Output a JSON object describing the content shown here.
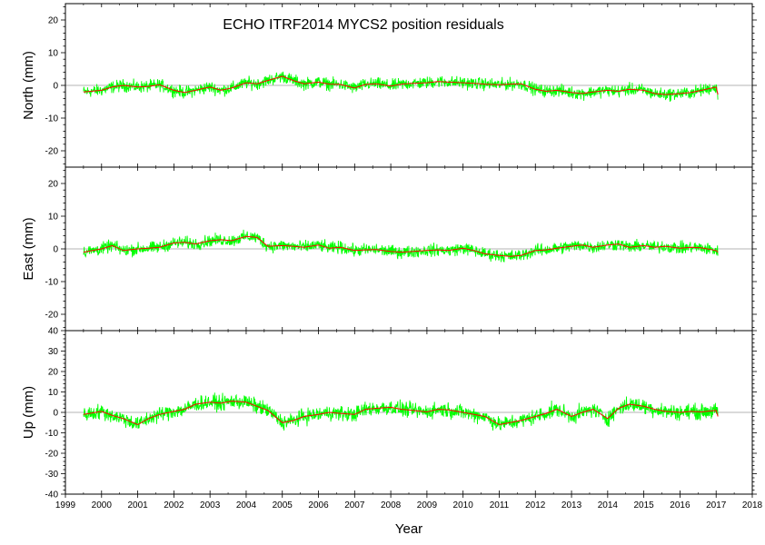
{
  "chart_data": {
    "type": "line",
    "title": "ECHO  ITRF2014 MYCS2 position residuals",
    "xlabel": "Year",
    "xlim": [
      1999,
      2018
    ],
    "x_ticks": [
      "1999",
      "2000",
      "2001",
      "2002",
      "2003",
      "2004",
      "2005",
      "2006",
      "2007",
      "2008",
      "2009",
      "2010",
      "2011",
      "2012",
      "2013",
      "2014",
      "2015",
      "2016",
      "2017",
      "2018"
    ],
    "series_colors": {
      "raw": "#00ff00",
      "smooth": "#ff0000",
      "zero": "#b4b4b4"
    },
    "panels": [
      {
        "name": "north",
        "ylabel": "North (mm)",
        "ylim": [
          -25,
          25
        ],
        "y_ticks": [
          "-20",
          "-10",
          "0",
          "10",
          "20"
        ],
        "smooth_x": [
          1999.5,
          2000.0,
          2000.3,
          2000.6,
          2001.0,
          2001.3,
          2001.6,
          2002.0,
          2002.3,
          2002.6,
          2003.0,
          2003.3,
          2003.6,
          2004.0,
          2004.3,
          2004.6,
          2005.0,
          2005.3,
          2005.6,
          2006.0,
          2006.3,
          2006.6,
          2007.0,
          2007.3,
          2007.6,
          2008.0,
          2008.3,
          2008.6,
          2009.0,
          2009.3,
          2009.6,
          2010.0,
          2010.3,
          2010.6,
          2011.0,
          2011.3,
          2011.6,
          2012.0,
          2012.3,
          2012.6,
          2013.0,
          2013.3,
          2013.6,
          2014.0,
          2014.3,
          2014.6,
          2015.0,
          2015.3,
          2015.6,
          2016.0,
          2016.3,
          2016.6,
          2017.0,
          2017.05
        ],
        "smooth_y": [
          -2,
          -1.5,
          -0.5,
          0,
          -0.5,
          -0.3,
          0.2,
          -1.5,
          -2.2,
          -1.5,
          -0.5,
          -1.5,
          -0.8,
          0.8,
          0.5,
          1.5,
          2.8,
          1.5,
          0.5,
          1,
          0.4,
          0.3,
          -0.8,
          0.3,
          0.5,
          -0.2,
          0.4,
          0.6,
          0.8,
          1.2,
          1,
          0.8,
          0.6,
          0.4,
          0.2,
          0.4,
          0.5,
          -1.2,
          -1.8,
          -1.5,
          -2.2,
          -2.5,
          -2,
          -1.5,
          -1.8,
          -1.2,
          -1.5,
          -2.5,
          -2.8,
          -2.5,
          -2.2,
          -1.5,
          -0.5,
          -2.8
        ]
      },
      {
        "name": "east",
        "ylabel": "East (mm)",
        "ylim": [
          -25,
          25
        ],
        "y_ticks": [
          "-20",
          "-10",
          "0",
          "10",
          "20"
        ],
        "smooth_x": [
          1999.5,
          2000.0,
          2000.3,
          2000.6,
          2001.0,
          2001.3,
          2001.6,
          2002.0,
          2002.3,
          2002.6,
          2003.0,
          2003.3,
          2003.6,
          2004.0,
          2004.3,
          2004.6,
          2005.0,
          2005.3,
          2005.6,
          2006.0,
          2006.3,
          2006.6,
          2007.0,
          2007.3,
          2007.6,
          2008.0,
          2008.3,
          2008.6,
          2009.0,
          2009.3,
          2009.6,
          2010.0,
          2010.3,
          2010.6,
          2011.0,
          2011.3,
          2011.6,
          2012.0,
          2012.3,
          2012.6,
          2013.0,
          2013.3,
          2013.6,
          2014.0,
          2014.3,
          2014.6,
          2015.0,
          2015.3,
          2015.6,
          2016.0,
          2016.3,
          2016.6,
          2017.0,
          2017.05
        ],
        "smooth_y": [
          -1,
          0,
          1,
          -0.5,
          0,
          0.2,
          0.5,
          1.8,
          2,
          1.5,
          2.5,
          2.8,
          2.5,
          3.8,
          3.5,
          0.8,
          1,
          0.8,
          0.5,
          1.2,
          0.2,
          0.5,
          -0.5,
          -0.3,
          -0.2,
          -0.8,
          -1,
          -0.8,
          -0.5,
          -0.3,
          -0.5,
          0.2,
          -0.5,
          -1.5,
          -2,
          -2.3,
          -2,
          -0.5,
          -0.3,
          0.2,
          0.8,
          1.2,
          0.5,
          1.2,
          1.5,
          0.5,
          1,
          0.5,
          0.8,
          0.2,
          0.5,
          0.3,
          -0.5,
          -1
        ]
      },
      {
        "name": "up",
        "ylabel": "Up (mm)",
        "ylim": [
          -40,
          40
        ],
        "y_ticks": [
          "-40",
          "-30",
          "-20",
          "-10",
          "0",
          "10",
          "20",
          "30",
          "40"
        ],
        "smooth_x": [
          1999.5,
          2000.0,
          2000.3,
          2000.6,
          2001.0,
          2001.3,
          2001.6,
          2002.0,
          2002.3,
          2002.6,
          2003.0,
          2003.3,
          2003.6,
          2004.0,
          2004.3,
          2004.6,
          2005.0,
          2005.3,
          2005.6,
          2006.0,
          2006.3,
          2006.6,
          2007.0,
          2007.3,
          2007.6,
          2008.0,
          2008.3,
          2008.6,
          2009.0,
          2009.3,
          2009.6,
          2010.0,
          2010.3,
          2010.6,
          2011.0,
          2011.3,
          2011.6,
          2012.0,
          2012.3,
          2012.6,
          2013.0,
          2013.3,
          2013.6,
          2014.0,
          2014.3,
          2014.6,
          2015.0,
          2015.3,
          2015.6,
          2016.0,
          2016.3,
          2016.6,
          2017.0,
          2017.05
        ],
        "smooth_y": [
          -1,
          0.5,
          -1.5,
          -3,
          -6,
          -3,
          -1,
          0.5,
          1.5,
          4,
          5,
          4.5,
          5.5,
          5,
          3,
          1,
          -5,
          -4,
          -2,
          -1,
          0,
          -0.5,
          -1,
          1.5,
          2,
          2.5,
          1.5,
          1,
          0.2,
          1.5,
          1.2,
          0,
          -1,
          -2,
          -6,
          -5,
          -4,
          -2,
          -0.5,
          1.5,
          -2,
          0,
          1.5,
          -3,
          2,
          4,
          3,
          1.5,
          0.5,
          0,
          0.5,
          0.2,
          1,
          -2
        ]
      }
    ]
  }
}
